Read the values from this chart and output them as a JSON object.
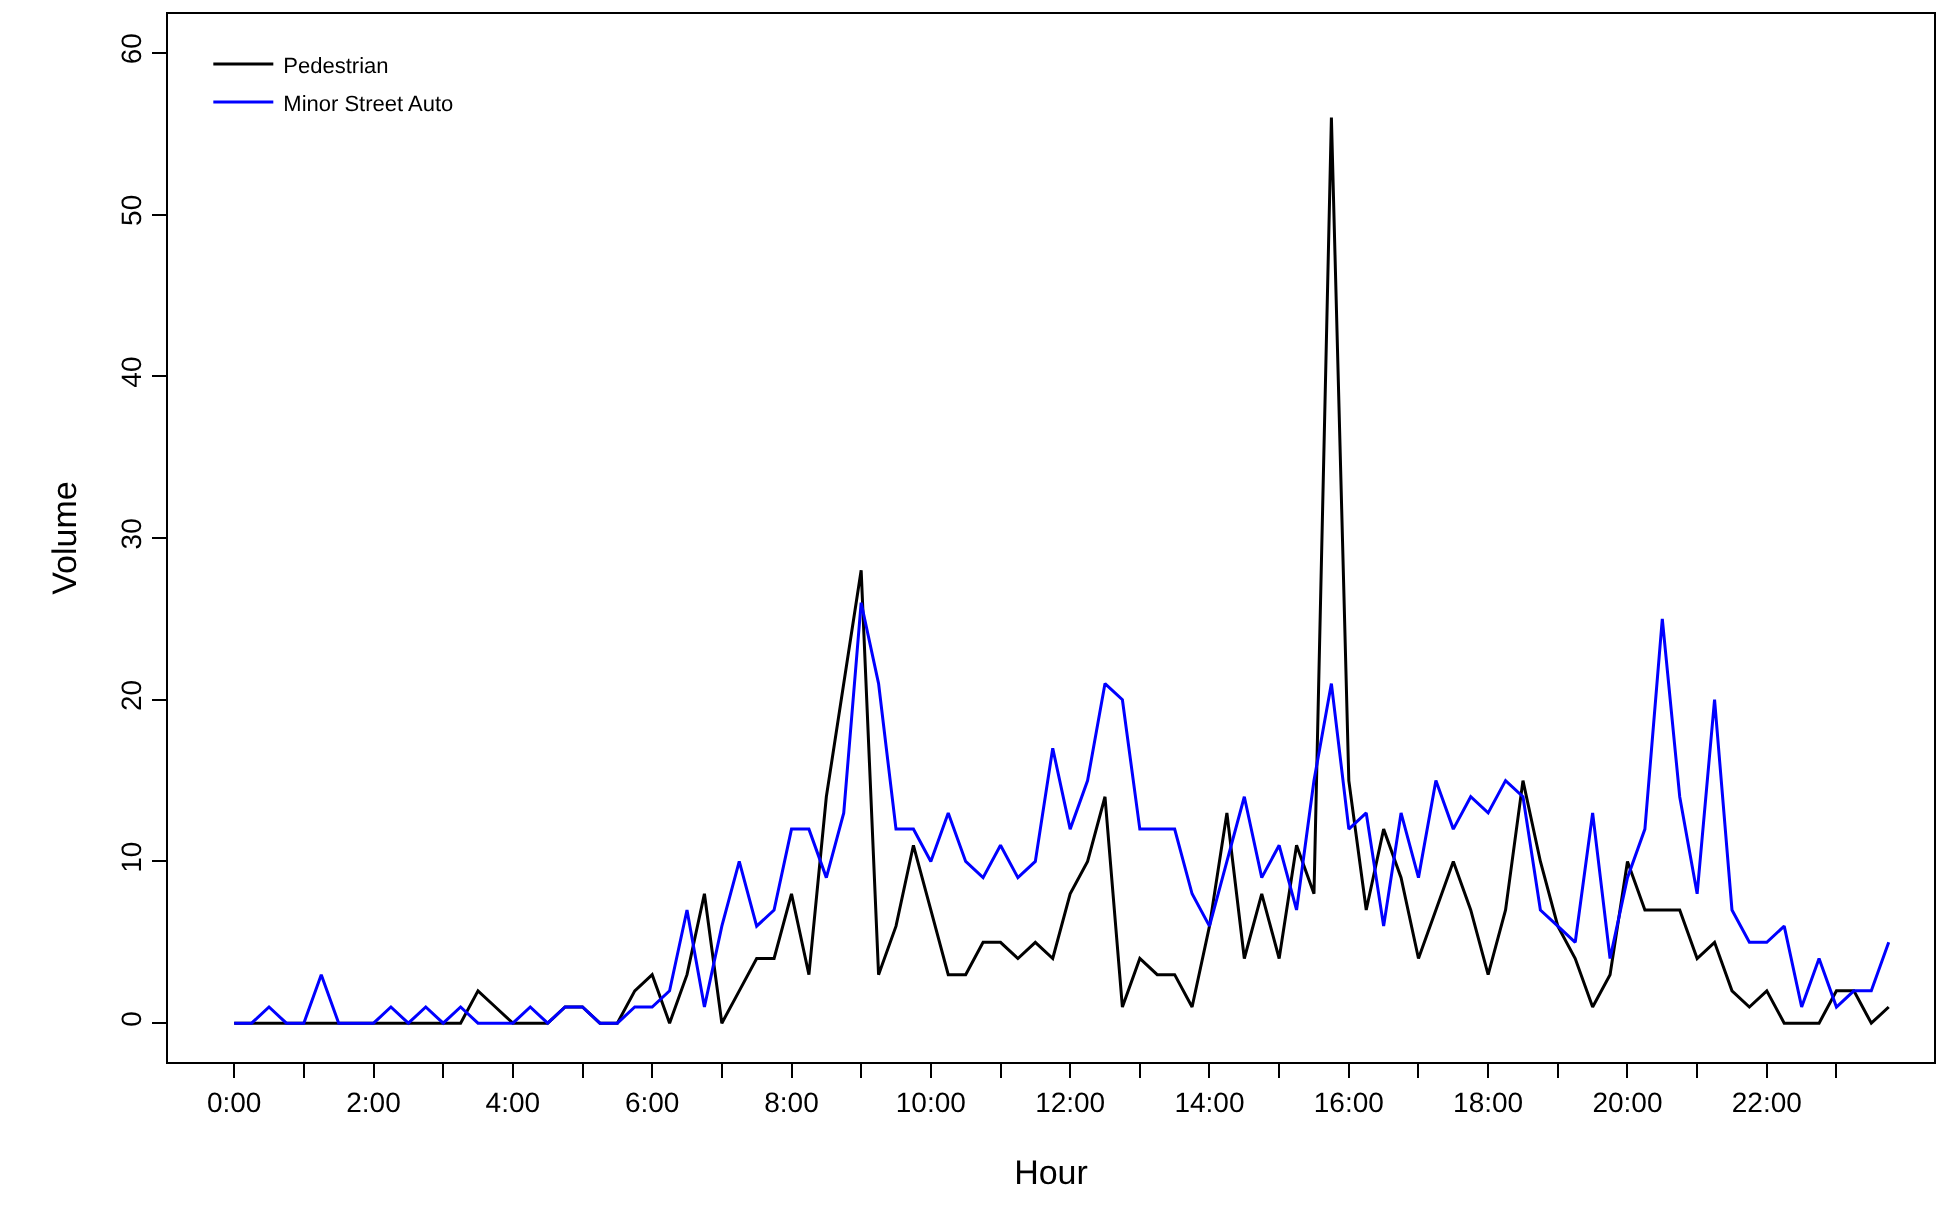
{
  "chart_data": {
    "type": "line",
    "xlabel": "Hour",
    "ylabel": "Volume",
    "x": [
      0,
      0.25,
      0.5,
      0.75,
      1,
      1.25,
      1.5,
      1.75,
      2,
      2.25,
      2.5,
      2.75,
      3,
      3.25,
      3.5,
      3.75,
      4,
      4.25,
      4.5,
      4.75,
      5,
      5.25,
      5.5,
      5.75,
      6,
      6.25,
      6.5,
      6.75,
      7,
      7.25,
      7.5,
      7.75,
      8,
      8.25,
      8.5,
      8.75,
      9,
      9.25,
      9.5,
      9.75,
      10,
      10.25,
      10.5,
      10.75,
      11,
      11.25,
      11.5,
      11.75,
      12,
      12.25,
      12.5,
      12.75,
      13,
      13.25,
      13.5,
      13.75,
      14,
      14.25,
      14.5,
      14.75,
      15,
      15.25,
      15.5,
      15.75,
      16,
      16.25,
      16.5,
      16.75,
      17,
      17.25,
      17.5,
      17.75,
      18,
      18.25,
      18.5,
      18.75,
      19,
      19.25,
      19.5,
      19.75,
      20,
      20.25,
      20.5,
      20.75,
      21,
      21.25,
      21.5,
      21.75,
      22,
      22.25,
      22.5,
      22.75,
      23,
      23.25,
      23.5,
      23.75
    ],
    "series": [
      {
        "name": "Pedestrian",
        "color": "#000000",
        "values": [
          0,
          0,
          0,
          0,
          0,
          0,
          0,
          0,
          0,
          0,
          0,
          0,
          0,
          0,
          2,
          1,
          0,
          0,
          0,
          1,
          1,
          0,
          0,
          2,
          3,
          0,
          3,
          8,
          0,
          2,
          4,
          4,
          8,
          3,
          14,
          21,
          28,
          3,
          6,
          11,
          7,
          3,
          3,
          5,
          5,
          4,
          5,
          4,
          8,
          10,
          14,
          1,
          4,
          3,
          3,
          1,
          6,
          13,
          4,
          8,
          4,
          11,
          8,
          56,
          15,
          7,
          12,
          9,
          4,
          7,
          10,
          7,
          3,
          7,
          15,
          10,
          6,
          4,
          1,
          3,
          10,
          7,
          7,
          7,
          4,
          5,
          2,
          1,
          2,
          0,
          0,
          0,
          2,
          2,
          0,
          1
        ]
      },
      {
        "name": "Minor Street Auto",
        "color": "#0000ff",
        "values": [
          0,
          0,
          1,
          0,
          0,
          3,
          0,
          0,
          0,
          1,
          0,
          1,
          0,
          1,
          0,
          0,
          0,
          1,
          0,
          1,
          1,
          0,
          0,
          1,
          1,
          2,
          7,
          1,
          6,
          10,
          6,
          7,
          12,
          12,
          9,
          13,
          26,
          21,
          12,
          12,
          10,
          13,
          10,
          9,
          11,
          9,
          10,
          17,
          12,
          15,
          21,
          20,
          12,
          12,
          12,
          8,
          6,
          10,
          14,
          9,
          11,
          7,
          15,
          21,
          12,
          13,
          6,
          13,
          9,
          15,
          12,
          14,
          13,
          15,
          14,
          7,
          6,
          5,
          13,
          4,
          9,
          12,
          25,
          14,
          8,
          20,
          7,
          5,
          5,
          6,
          1,
          4,
          1,
          2,
          2,
          5
        ]
      }
    ],
    "xlim": [
      -0.95,
      24.4
    ],
    "xticks": [
      {
        "value": 0,
        "label": "0:00"
      },
      {
        "value": 1,
        "label": null
      },
      {
        "value": 2,
        "label": "2:00"
      },
      {
        "value": 3,
        "label": null
      },
      {
        "value": 4,
        "label": "4:00"
      },
      {
        "value": 5,
        "label": null
      },
      {
        "value": 6,
        "label": "6:00"
      },
      {
        "value": 7,
        "label": null
      },
      {
        "value": 8,
        "label": "8:00"
      },
      {
        "value": 9,
        "label": null
      },
      {
        "value": 10,
        "label": "10:00"
      },
      {
        "value": 11,
        "label": null
      },
      {
        "value": 12,
        "label": "12:00"
      },
      {
        "value": 13,
        "label": null
      },
      {
        "value": 14,
        "label": "14:00"
      },
      {
        "value": 15,
        "label": null
      },
      {
        "value": 16,
        "label": "16:00"
      },
      {
        "value": 17,
        "label": null
      },
      {
        "value": 18,
        "label": "18:00"
      },
      {
        "value": 19,
        "label": null
      },
      {
        "value": 20,
        "label": "20:00"
      },
      {
        "value": 21,
        "label": null
      },
      {
        "value": 22,
        "label": "22:00"
      },
      {
        "value": 23,
        "label": null
      }
    ],
    "ylim": [
      -2.4,
      62.4
    ],
    "yticks": [
      0,
      10,
      20,
      30,
      40,
      50,
      60
    ],
    "grid": false,
    "legend": "top left",
    "marker": "none",
    "line_style": "solid"
  }
}
